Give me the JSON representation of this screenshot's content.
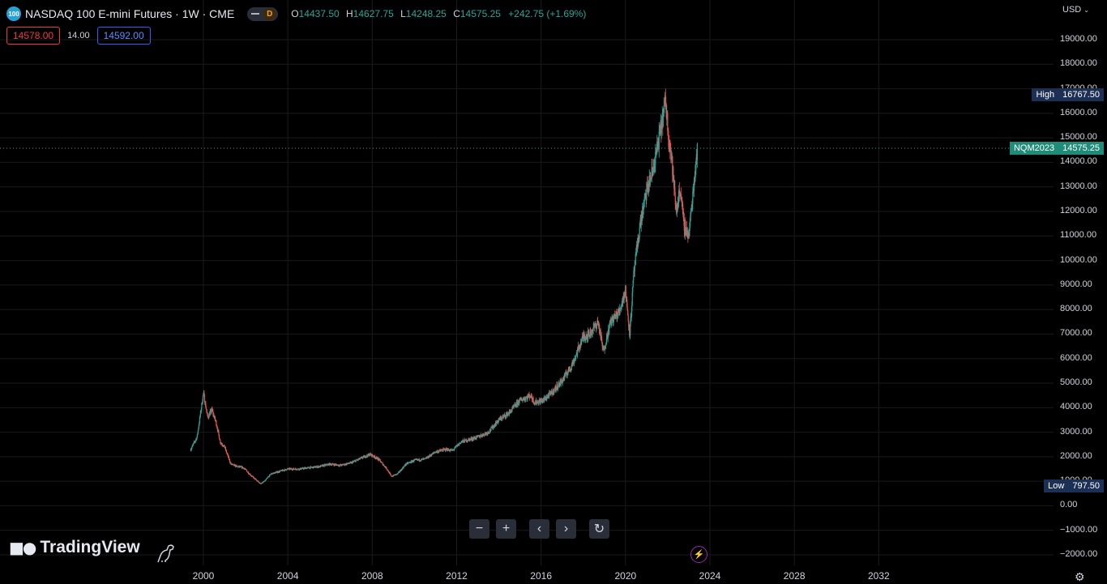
{
  "header": {
    "symbol_badge": "100",
    "title": "NASDAQ 100 E-mini Futures · 1W · CME",
    "session_badge": "D",
    "ohlc": {
      "o_key": "O",
      "o": "14437.50",
      "h_key": "H",
      "h": "14627.75",
      "l_key": "L",
      "l": "14248.25",
      "c_key": "C",
      "c": "14575.25",
      "change": "+242.75 (+1.69%)"
    },
    "bid": "14578.00",
    "spread": "14.00",
    "ask": "14592.00",
    "currency": "USD"
  },
  "price_labels": {
    "high_label": "High",
    "high_value": "16767.50",
    "low_label": "Low",
    "low_value": "797.50",
    "current_label": "NQM2023",
    "current_value": "14575.25"
  },
  "branding": {
    "logo_text": "TradingView"
  },
  "controls": {
    "zoom_out": "−",
    "zoom_in": "+",
    "scroll_left": "‹",
    "scroll_right": "›",
    "reset": "↻"
  },
  "icons": [
    "symbol-logo-icon",
    "dino-icon",
    "lightning-icon",
    "settings-gear-icon"
  ],
  "colors": {
    "up": "#26a69a",
    "down": "#ef5350",
    "background": "#000000",
    "grid": "#1a1a1a"
  },
  "chart_data": {
    "type": "line",
    "title": "",
    "xlabel": "",
    "ylabel": "",
    "ylim": [
      -2000,
      20000
    ],
    "xlim": [
      1995.5,
      2034.5
    ],
    "grid": true,
    "y_ticks": [
      "19000.00",
      "18000.00",
      "17000.00",
      "16000.00",
      "15000.00",
      "14000.00",
      "13000.00",
      "12000.00",
      "11000.00",
      "10000.00",
      "9000.00",
      "8000.00",
      "7000.00",
      "6000.00",
      "5000.00",
      "4000.00",
      "3000.00",
      "2000.00",
      "1000.00",
      "0.00",
      "−1000.00",
      "−2000.00"
    ],
    "y_tick_values": [
      19000,
      18000,
      17000,
      16000,
      15000,
      14000,
      13000,
      12000,
      11000,
      10000,
      9000,
      8000,
      7000,
      6000,
      5000,
      4000,
      3000,
      2000,
      1000,
      0,
      -1000,
      -2000
    ],
    "x_ticks": [
      "2000",
      "2004",
      "2008",
      "2012",
      "2016",
      "2020",
      "2024",
      "2028",
      "2032"
    ],
    "x_tick_values": [
      2000,
      2004,
      2008,
      2012,
      2016,
      2020,
      2024,
      2028,
      2032
    ],
    "series": [
      {
        "x": [
          1999.4,
          1999.7,
          2000.0,
          2000.2,
          2000.4,
          2000.6,
          2000.8,
          2001.0,
          2001.3,
          2001.6,
          2001.9,
          2002.3,
          2002.7,
          2002.9,
          2003.2,
          2003.6,
          2004.0,
          2004.5,
          2005.0,
          2005.5,
          2006.0,
          2006.5,
          2007.0,
          2007.5,
          2007.9,
          2008.3,
          2008.7,
          2008.9,
          2009.2,
          2009.6,
          2010.0,
          2010.5,
          2011.0,
          2011.5,
          2011.8,
          2012.2,
          2012.6,
          2013.0,
          2013.5,
          2014.0,
          2014.5,
          2015.0,
          2015.5,
          2015.7,
          2016.1,
          2016.5,
          2017.0,
          2017.5,
          2018.0,
          2018.3,
          2018.7,
          2018.95,
          2019.3,
          2019.7,
          2020.0,
          2020.2,
          2020.4,
          2020.7,
          2021.0,
          2021.3,
          2021.6,
          2021.9,
          2022.0,
          2022.2,
          2022.4,
          2022.6,
          2022.75,
          2022.9,
          2023.0,
          2023.2,
          2023.4
        ],
        "y": [
          2300,
          2800,
          4600,
          3600,
          3900,
          3400,
          2600,
          2400,
          1700,
          1600,
          1550,
          1200,
          900,
          1000,
          1300,
          1400,
          1500,
          1500,
          1550,
          1600,
          1700,
          1650,
          1750,
          1950,
          2100,
          1900,
          1500,
          1200,
          1300,
          1700,
          1850,
          1900,
          2200,
          2300,
          2250,
          2600,
          2700,
          2800,
          3000,
          3500,
          3800,
          4300,
          4500,
          4200,
          4300,
          4600,
          5100,
          5800,
          6900,
          7000,
          7500,
          6300,
          7500,
          7900,
          8800,
          7000,
          9500,
          11500,
          12800,
          13700,
          15000,
          16500,
          15500,
          14000,
          12000,
          13000,
          11500,
          11200,
          11000,
          12800,
          14575
        ]
      }
    ]
  }
}
